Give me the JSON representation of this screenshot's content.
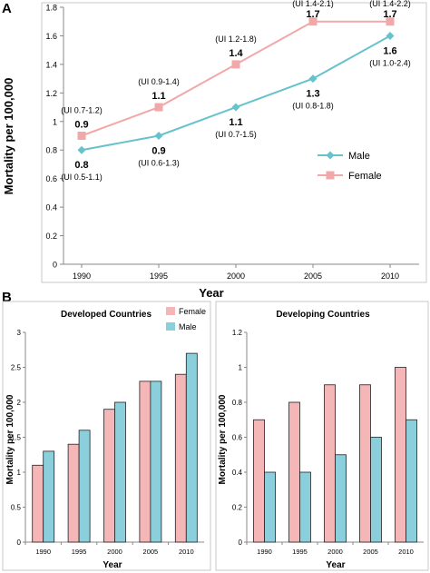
{
  "panels": {
    "a_label": "A",
    "b_label": "B"
  },
  "colors": {
    "male_line": "#66c2cc",
    "female_line": "#f2a8a8",
    "female_bar": "#f4b6b6",
    "male_bar": "#8ccfdc"
  },
  "chart_data": [
    {
      "type": "line",
      "title": "",
      "xlabel": "Year",
      "ylabel": "Mortality per 100,000",
      "categories": [
        "1990",
        "1995",
        "2000",
        "2005",
        "2010"
      ],
      "ylim": [
        0,
        1.8
      ],
      "yticks": [
        "0",
        "0.2",
        "0.4",
        "0.6",
        "0.8",
        "1",
        "1.2",
        "1.4",
        "1.6",
        "1.8"
      ],
      "series": [
        {
          "name": "Male",
          "values": [
            0.8,
            0.9,
            1.1,
            1.3,
            1.6
          ],
          "labels": [
            "0.8",
            "0.9",
            "1.1",
            "1.3",
            "1.6"
          ],
          "ui": [
            "(UI 0.5-1.1)",
            "(UI 0.6-1.3)",
            "(UI 0.7-1.5)",
            "(UI 0.8-1.8)",
            "(UI 1.0-2.4)"
          ]
        },
        {
          "name": "Female",
          "values": [
            0.9,
            1.1,
            1.4,
            1.7,
            1.7
          ],
          "labels": [
            "0.9",
            "1.1",
            "1.4",
            "1.7",
            "1.7"
          ],
          "ui": [
            "(UI 0.7-1.2)",
            "(UI 0.9-1.4)",
            "(UI 1.2-1.8)",
            "(UI 1.4-2.1)",
            "(UI 1.4-2.2)"
          ]
        }
      ],
      "legend": "right"
    },
    {
      "type": "bar",
      "title": "Developed Countries",
      "xlabel": "Year",
      "ylabel": "Mortality per 100,000",
      "categories": [
        "1990",
        "1995",
        "2000",
        "2005",
        "2010"
      ],
      "ylim": [
        0,
        3
      ],
      "yticks": [
        "0",
        "0.5",
        "1",
        "1.5",
        "2",
        "2.5",
        "3"
      ],
      "series": [
        {
          "name": "Female",
          "values": [
            1.1,
            1.4,
            1.9,
            2.3,
            2.4
          ]
        },
        {
          "name": "Male",
          "values": [
            1.3,
            1.6,
            2.0,
            2.3,
            2.7
          ]
        }
      ],
      "legend": "top"
    },
    {
      "type": "bar",
      "title": "Developing Countries",
      "xlabel": "Year",
      "ylabel": "Mortality per 100,000",
      "categories": [
        "1990",
        "1995",
        "2000",
        "2005",
        "2010"
      ],
      "ylim": [
        0,
        1.2
      ],
      "yticks": [
        "0",
        "0.2",
        "0.4",
        "0.6",
        "0.8",
        "1",
        "1.2"
      ],
      "series": [
        {
          "name": "Female",
          "values": [
            0.7,
            0.8,
            0.9,
            0.9,
            1.0
          ]
        },
        {
          "name": "Male",
          "values": [
            0.4,
            0.4,
            0.5,
            0.6,
            0.7
          ]
        }
      ]
    }
  ]
}
